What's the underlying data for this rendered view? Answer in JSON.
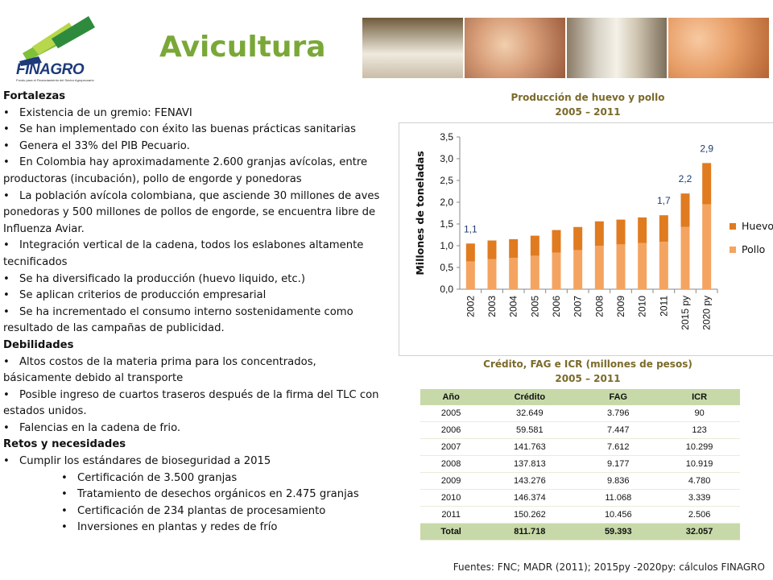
{
  "logo": {
    "name": "FINAGRO",
    "tagline": "Fondo para el Financiamiento del Sector Agropecuario"
  },
  "title": "Avicultura",
  "fortalezas": {
    "heading": "Fortalezas",
    "items": [
      "Existencia de un gremio: FENAVI",
      "Se han implementado con éxito las buenas prácticas sanitarias",
      "Genera el 33% del PIB Pecuario.",
      "En Colombia hay aproximadamente 2.600 granjas avícolas, entre productoras (incubación), pollo de engorde y ponedoras",
      "La población avícola colombiana, que asciende 30 millones de aves ponedoras y 500 millones de pollos de engorde, se encuentra libre de Influenza Aviar.",
      "Integración vertical de la cadena, todos los eslabones altamente tecnificados",
      "Se ha diversificado la producción (huevo liquido, etc.)",
      "Se aplican criterios de producción empresarial",
      "Se ha incrementado el consumo interno sostenidamente como resultado de las campañas de publicidad."
    ]
  },
  "debilidades": {
    "heading": "Debilidades",
    "items": [
      "Altos costos de la materia prima para los concentrados, básicamente debido al transporte",
      "Posible ingreso de cuartos traseros después de la firma del TLC con estados unidos.",
      "Falencias en la cadena de frio."
    ]
  },
  "retos": {
    "heading": "Retos y necesidades",
    "items": [
      "Cumplir los estándares de bioseguridad a 2015"
    ],
    "subitems": [
      "Certificación de 3.500 granjas",
      "Tratamiento de desechos orgánicos en 2.475 granjas",
      "Certificación de 234 plantas de procesamiento",
      "Inversiones en plantas y redes de frío"
    ]
  },
  "bullet": "•",
  "chart_heading": {
    "line1": "Producción de huevo y pollo",
    "line2": "2005 – 2011"
  },
  "table_heading": {
    "line1": "Crédito, FAG e ICR (millones de pesos)",
    "line2": "2005 – 2011"
  },
  "chart_data": {
    "type": "bar",
    "stacked": true,
    "categories": [
      "2002",
      "2003",
      "2004",
      "2005",
      "2006",
      "2007",
      "2008",
      "2009",
      "2010",
      "2011",
      "2015 py",
      "2020 py"
    ],
    "series": [
      {
        "name": "Pollo",
        "color": "#f4a460",
        "values": [
          0.64,
          0.69,
          0.72,
          0.77,
          0.84,
          0.9,
          1.0,
          1.03,
          1.06,
          1.09,
          1.43,
          1.95
        ]
      },
      {
        "name": "Huevo",
        "color": "#e07b20",
        "values": [
          0.41,
          0.43,
          0.43,
          0.46,
          0.52,
          0.53,
          0.56,
          0.57,
          0.59,
          0.61,
          0.77,
          0.95
        ]
      }
    ],
    "data_labels": [
      {
        "category": "2002",
        "text": "1,1"
      },
      {
        "category": "2011",
        "text": "1,7"
      },
      {
        "category": "2015 py",
        "text": "2,2"
      },
      {
        "category": "2020 py",
        "text": "2,9"
      }
    ],
    "yticks": [
      "0,0",
      "0,5",
      "1,0",
      "1,5",
      "2,0",
      "2,5",
      "3,0",
      "3,5"
    ],
    "ylim": [
      0,
      3.5
    ],
    "ylabel": "Millones de toneladas",
    "xlabel": "",
    "legend": [
      "Huevo",
      "Pollo"
    ],
    "legend_position": "right",
    "grid": false
  },
  "table": {
    "headers": [
      "Año",
      "Crédito",
      "FAG",
      "ICR"
    ],
    "rows": [
      [
        "2005",
        "32.649",
        "3.796",
        "90"
      ],
      [
        "2006",
        "59.581",
        "7.447",
        "123"
      ],
      [
        "2007",
        "141.763",
        "7.612",
        "10.299"
      ],
      [
        "2008",
        "137.813",
        "9.177",
        "10.919"
      ],
      [
        "2009",
        "143.276",
        "9.836",
        "4.780"
      ],
      [
        "2010",
        "146.374",
        "11.068",
        "3.339"
      ],
      [
        "2011",
        "150.262",
        "10.456",
        "2.506"
      ]
    ],
    "total": [
      "Total",
      "811.718",
      "59.393",
      "32.057"
    ]
  },
  "source": "Fuentes: FNC; MADR (2011); 2015py -2020py: cálculos FINAGRO"
}
